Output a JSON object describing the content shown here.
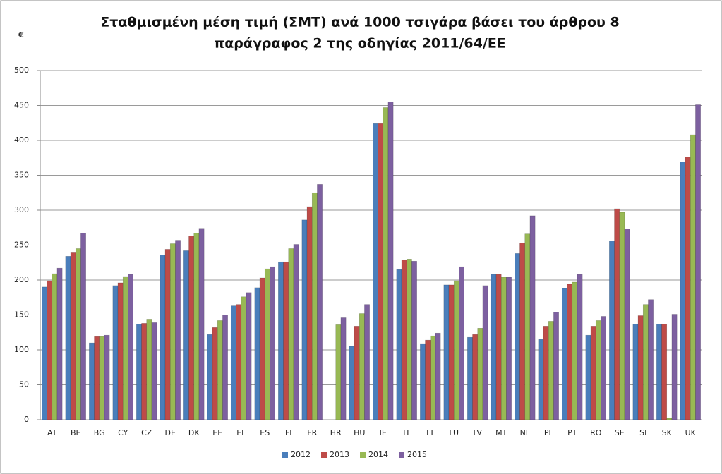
{
  "chart_data": {
    "type": "bar",
    "title": [
      "Σταθμισμένη μέση τιμή (ΣΜΤ) ανά 1000 τσιγάρα βάσει του άρθρου 8",
      "παράγραφος 2 της οδηγίας 2011/64/ΕΕ"
    ],
    "y_label": "€",
    "categories": [
      "AT",
      "BE",
      "BG",
      "CY",
      "CZ",
      "DE",
      "DK",
      "EE",
      "EL",
      "ES",
      "FI",
      "FR",
      "HR",
      "HU",
      "IE",
      "IT",
      "LT",
      "LU",
      "LV",
      "MT",
      "NL",
      "PL",
      "PT",
      "RO",
      "SE",
      "SI",
      "SK",
      "UK"
    ],
    "series": [
      {
        "name": "2012",
        "color": "#4a7ebb",
        "values": [
          190,
          234,
          110,
          192,
          137,
          236,
          242,
          122,
          163,
          189,
          226,
          286,
          null,
          105,
          424,
          215,
          109,
          193,
          118,
          208,
          238,
          115,
          188,
          121,
          256,
          137,
          137,
          369
        ]
      },
      {
        "name": "2013",
        "color": "#be4b48",
        "values": [
          199,
          240,
          119,
          196,
          138,
          244,
          263,
          132,
          165,
          203,
          226,
          305,
          null,
          134,
          424,
          229,
          114,
          193,
          122,
          208,
          253,
          134,
          194,
          134,
          302,
          149,
          137,
          376
        ]
      },
      {
        "name": "2014",
        "color": "#98b954",
        "values": [
          209,
          245,
          119,
          205,
          144,
          252,
          267,
          142,
          176,
          216,
          245,
          325,
          136,
          152,
          447,
          230,
          120,
          199,
          131,
          204,
          266,
          141,
          197,
          142,
          297,
          165,
          2,
          408
        ]
      },
      {
        "name": "2015",
        "color": "#7d60a0",
        "values": [
          217,
          267,
          121,
          208,
          139,
          257,
          274,
          150,
          182,
          219,
          251,
          337,
          146,
          165,
          455,
          227,
          124,
          219,
          192,
          204,
          292,
          154,
          208,
          148,
          273,
          172,
          151,
          451
        ]
      }
    ],
    "ylim": [
      0,
      500
    ],
    "yticks": [
      0,
      50,
      100,
      150,
      200,
      250,
      300,
      350,
      400,
      450,
      500
    ],
    "grid": true,
    "legend": "bottom"
  }
}
